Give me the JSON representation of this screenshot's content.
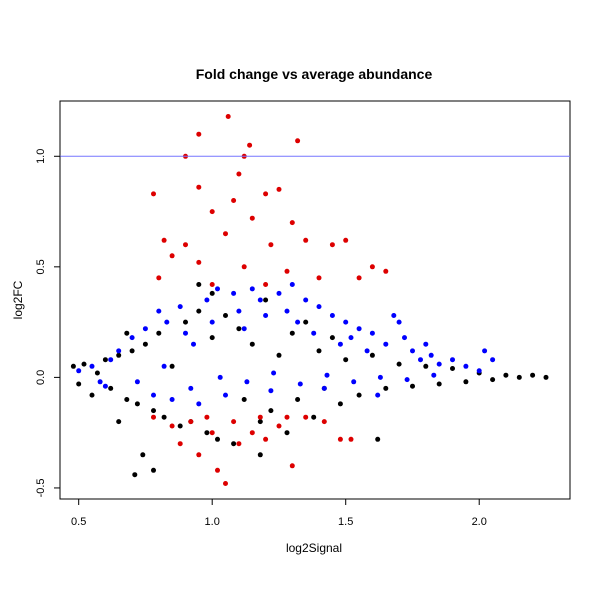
{
  "chart_data": {
    "type": "scatter",
    "title": "Fold change vs average abundance",
    "xlabel": "log2Signal",
    "ylabel": "log2FC",
    "xlim": [
      0.43,
      2.34
    ],
    "ylim": [
      -0.55,
      1.25
    ],
    "xticks": [
      {
        "value": 0.5,
        "label": "0.5"
      },
      {
        "value": 1.0,
        "label": "1.0"
      },
      {
        "value": 1.5,
        "label": "1.5"
      },
      {
        "value": 2.0,
        "label": "2.0"
      }
    ],
    "yticks": [
      {
        "value": -0.5,
        "label": "-0.5"
      },
      {
        "value": 0.0,
        "label": "0.0"
      },
      {
        "value": 0.5,
        "label": "0.5"
      },
      {
        "value": 1.0,
        "label": "1.0"
      }
    ],
    "reference_line": {
      "y": 1.0,
      "color": "#7777ff"
    },
    "grid": false,
    "series": [
      {
        "color": "#000000",
        "points": [
          [
            0.48,
            0.05
          ],
          [
            0.5,
            -0.03
          ],
          [
            0.52,
            0.06
          ],
          [
            0.55,
            -0.08
          ],
          [
            0.57,
            0.02
          ],
          [
            0.6,
            0.08
          ],
          [
            0.62,
            -0.05
          ],
          [
            0.65,
            0.1
          ],
          [
            0.68,
            -0.1
          ],
          [
            0.7,
            0.12
          ],
          [
            0.72,
            -0.12
          ],
          [
            0.75,
            0.15
          ],
          [
            0.78,
            -0.15
          ],
          [
            0.8,
            0.2
          ],
          [
            0.82,
            -0.18
          ],
          [
            0.85,
            0.05
          ],
          [
            0.88,
            -0.22
          ],
          [
            0.9,
            0.25
          ],
          [
            0.92,
            -0.2
          ],
          [
            0.95,
            0.3
          ],
          [
            0.98,
            -0.25
          ],
          [
            1.0,
            0.18
          ],
          [
            1.02,
            -0.28
          ],
          [
            1.05,
            0.28
          ],
          [
            1.08,
            -0.3
          ],
          [
            1.1,
            0.22
          ],
          [
            1.12,
            -0.1
          ],
          [
            1.15,
            0.15
          ],
          [
            1.18,
            -0.2
          ],
          [
            1.2,
            0.35
          ],
          [
            1.22,
            -0.15
          ],
          [
            1.25,
            0.1
          ],
          [
            1.28,
            -0.25
          ],
          [
            1.3,
            0.2
          ],
          [
            1.32,
            -0.1
          ],
          [
            1.35,
            0.25
          ],
          [
            1.38,
            -0.18
          ],
          [
            1.4,
            0.12
          ],
          [
            1.42,
            -0.05
          ],
          [
            1.45,
            0.18
          ],
          [
            1.48,
            -0.12
          ],
          [
            1.5,
            0.08
          ],
          [
            1.55,
            -0.08
          ],
          [
            1.6,
            0.1
          ],
          [
            1.65,
            -0.05
          ],
          [
            1.7,
            0.06
          ],
          [
            1.75,
            -0.04
          ],
          [
            1.8,
            0.05
          ],
          [
            1.85,
            -0.03
          ],
          [
            1.9,
            0.04
          ],
          [
            1.95,
            -0.02
          ],
          [
            2.0,
            0.02
          ],
          [
            2.05,
            -0.01
          ],
          [
            2.1,
            0.01
          ],
          [
            2.15,
            0.0
          ],
          [
            2.2,
            0.01
          ],
          [
            2.25,
            0.0
          ],
          [
            0.71,
            -0.44
          ],
          [
            0.78,
            -0.42
          ],
          [
            1.62,
            -0.28
          ],
          [
            0.95,
            0.42
          ],
          [
            0.74,
            -0.35
          ],
          [
            1.0,
            0.38
          ],
          [
            1.18,
            -0.35
          ],
          [
            0.68,
            0.2
          ],
          [
            0.65,
            -0.2
          ]
        ]
      },
      {
        "color": "#0000ff",
        "points": [
          [
            0.5,
            0.03
          ],
          [
            0.55,
            0.05
          ],
          [
            0.6,
            -0.04
          ],
          [
            0.65,
            0.12
          ],
          [
            0.7,
            0.18
          ],
          [
            0.75,
            0.22
          ],
          [
            0.78,
            -0.08
          ],
          [
            0.8,
            0.3
          ],
          [
            0.83,
            0.25
          ],
          [
            0.85,
            -0.1
          ],
          [
            0.88,
            0.32
          ],
          [
            0.9,
            0.2
          ],
          [
            0.93,
            0.15
          ],
          [
            0.95,
            -0.12
          ],
          [
            0.98,
            0.35
          ],
          [
            1.0,
            0.25
          ],
          [
            1.02,
            0.4
          ],
          [
            1.05,
            -0.08
          ],
          [
            1.08,
            0.38
          ],
          [
            1.1,
            0.3
          ],
          [
            1.12,
            0.22
          ],
          [
            1.15,
            0.4
          ],
          [
            1.18,
            0.35
          ],
          [
            1.2,
            0.28
          ],
          [
            1.22,
            -0.06
          ],
          [
            1.25,
            0.38
          ],
          [
            1.28,
            0.3
          ],
          [
            1.3,
            0.42
          ],
          [
            1.32,
            0.25
          ],
          [
            1.35,
            0.35
          ],
          [
            1.38,
            0.2
          ],
          [
            1.4,
            0.32
          ],
          [
            1.42,
            -0.05
          ],
          [
            1.45,
            0.28
          ],
          [
            1.48,
            0.15
          ],
          [
            1.5,
            0.25
          ],
          [
            1.52,
            0.18
          ],
          [
            1.55,
            0.22
          ],
          [
            1.58,
            0.12
          ],
          [
            1.6,
            0.2
          ],
          [
            1.62,
            -0.08
          ],
          [
            1.65,
            0.15
          ],
          [
            1.68,
            0.28
          ],
          [
            1.7,
            0.25
          ],
          [
            1.72,
            0.18
          ],
          [
            1.75,
            0.12
          ],
          [
            1.78,
            0.08
          ],
          [
            1.8,
            0.15
          ],
          [
            1.82,
            0.1
          ],
          [
            1.85,
            0.06
          ],
          [
            1.9,
            0.08
          ],
          [
            1.95,
            0.05
          ],
          [
            2.0,
            0.03
          ],
          [
            2.02,
            0.12
          ],
          [
            2.05,
            0.08
          ],
          [
            0.58,
            -0.02
          ],
          [
            0.62,
            0.08
          ],
          [
            0.72,
            -0.02
          ],
          [
            0.82,
            0.05
          ],
          [
            0.92,
            -0.05
          ],
          [
            1.03,
            0.0
          ],
          [
            1.13,
            -0.02
          ],
          [
            1.23,
            0.02
          ],
          [
            1.33,
            -0.03
          ],
          [
            1.43,
            0.01
          ],
          [
            1.53,
            -0.02
          ],
          [
            1.63,
            0.0
          ],
          [
            1.73,
            -0.01
          ],
          [
            1.83,
            0.01
          ]
        ]
      },
      {
        "color": "#dd0000",
        "points": [
          [
            1.06,
            1.18
          ],
          [
            0.95,
            1.1
          ],
          [
            1.14,
            1.05
          ],
          [
            1.32,
            1.07
          ],
          [
            0.9,
            1.0
          ],
          [
            1.12,
            1.0
          ],
          [
            1.1,
            0.92
          ],
          [
            0.78,
            0.83
          ],
          [
            0.95,
            0.86
          ],
          [
            1.2,
            0.83
          ],
          [
            1.25,
            0.85
          ],
          [
            1.08,
            0.8
          ],
          [
            1.0,
            0.75
          ],
          [
            1.15,
            0.72
          ],
          [
            1.3,
            0.7
          ],
          [
            0.82,
            0.62
          ],
          [
            0.9,
            0.6
          ],
          [
            1.05,
            0.65
          ],
          [
            1.22,
            0.6
          ],
          [
            1.35,
            0.62
          ],
          [
            1.45,
            0.6
          ],
          [
            1.5,
            0.62
          ],
          [
            0.85,
            0.55
          ],
          [
            0.95,
            0.52
          ],
          [
            1.12,
            0.5
          ],
          [
            1.28,
            0.48
          ],
          [
            1.4,
            0.45
          ],
          [
            1.55,
            0.45
          ],
          [
            1.6,
            0.5
          ],
          [
            1.65,
            0.48
          ],
          [
            0.8,
            0.45
          ],
          [
            1.0,
            0.42
          ],
          [
            1.2,
            0.42
          ],
          [
            0.78,
            -0.18
          ],
          [
            0.85,
            -0.22
          ],
          [
            0.92,
            -0.2
          ],
          [
            0.95,
            -0.35
          ],
          [
            1.0,
            -0.25
          ],
          [
            1.02,
            -0.42
          ],
          [
            1.05,
            -0.48
          ],
          [
            1.1,
            -0.3
          ],
          [
            1.15,
            -0.25
          ],
          [
            1.2,
            -0.28
          ],
          [
            1.25,
            -0.22
          ],
          [
            1.3,
            -0.4
          ],
          [
            1.35,
            -0.18
          ],
          [
            1.42,
            -0.2
          ],
          [
            1.48,
            -0.28
          ],
          [
            1.52,
            -0.28
          ],
          [
            0.88,
            -0.3
          ],
          [
            0.98,
            -0.18
          ],
          [
            1.08,
            -0.2
          ],
          [
            1.18,
            -0.18
          ],
          [
            1.28,
            -0.18
          ]
        ]
      }
    ]
  }
}
